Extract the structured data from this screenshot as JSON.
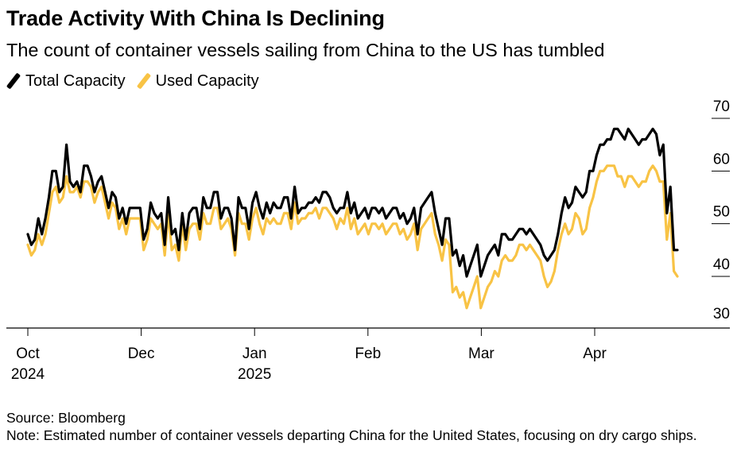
{
  "title": "Trade Activity With China Is Declining",
  "subtitle": "The count of container vessels sailing from China to the US has tumbled",
  "source": "Source: Bloomberg",
  "note": "Note: Estimated number of container vessels departing China for the United States, focusing on dry cargo ships.",
  "chart_data": {
    "type": "line",
    "x_ticks": [
      "Oct\n2024",
      "Dec",
      "Jan\n2025",
      "Feb",
      "Mar",
      "Apr"
    ],
    "y_ticks": [
      30,
      40,
      50,
      60,
      70
    ],
    "ylim": [
      27,
      72
    ],
    "legend_position": "top-left",
    "series": [
      {
        "name": "Total Capacity",
        "color": "#000000",
        "values": [
          48,
          46,
          47,
          51,
          48,
          51,
          55,
          60,
          60,
          56,
          57,
          65,
          58,
          57,
          58,
          56,
          61,
          61,
          59,
          56,
          58,
          59,
          56,
          53,
          56,
          55,
          51,
          53,
          50,
          53,
          53,
          53,
          53,
          47,
          49,
          54,
          52,
          51,
          52,
          46,
          55,
          48,
          49,
          45,
          52,
          47,
          52,
          53,
          53,
          49,
          55,
          53,
          53,
          56,
          56,
          51,
          53,
          53,
          51,
          45,
          55,
          53,
          53,
          49,
          54,
          56,
          53,
          51,
          54,
          52,
          54,
          53,
          53,
          55,
          55,
          51,
          57,
          52,
          53,
          53,
          54,
          54,
          55,
          54,
          56,
          56,
          55,
          53,
          52,
          53,
          53,
          56,
          52,
          54,
          51,
          52,
          53,
          51,
          53,
          53,
          52,
          53,
          51,
          52,
          53,
          53,
          51,
          52,
          50,
          51,
          53,
          48,
          53,
          54,
          55,
          56,
          52,
          49,
          46,
          51,
          51,
          44,
          45,
          42,
          44,
          40,
          42,
          44,
          46,
          40,
          42,
          44,
          45,
          46,
          44,
          48,
          48,
          47,
          47,
          48,
          49,
          49,
          48,
          49,
          48,
          47,
          46,
          44,
          43,
          44,
          45,
          48,
          52,
          55,
          53,
          54,
          57,
          56,
          55,
          56,
          60,
          60,
          63,
          65,
          65,
          66,
          66,
          68,
          68,
          67,
          66,
          68,
          67,
          66,
          65,
          66,
          66,
          67,
          68,
          67,
          63,
          65,
          52,
          57,
          45,
          45
        ]
      },
      {
        "name": "Used Capacity",
        "color": "#F8C345",
        "values": [
          46,
          44,
          45,
          48,
          46,
          48,
          52,
          56,
          57,
          54,
          55,
          59,
          56,
          56,
          57,
          55,
          58,
          58,
          57,
          54,
          56,
          57,
          54,
          51,
          54,
          53,
          49,
          51,
          48,
          51,
          51,
          51,
          51,
          45,
          47,
          51,
          50,
          49,
          50,
          44,
          52,
          45,
          46,
          43,
          50,
          45,
          49,
          50,
          50,
          47,
          52,
          50,
          50,
          53,
          53,
          49,
          50,
          51,
          49,
          44,
          52,
          50,
          50,
          47,
          51,
          53,
          50,
          48,
          51,
          50,
          51,
          50,
          50,
          52,
          52,
          49,
          54,
          50,
          51,
          51,
          52,
          52,
          53,
          51,
          53,
          53,
          52,
          51,
          49,
          51,
          50,
          53,
          49,
          51,
          48,
          49,
          50,
          48,
          50,
          50,
          49,
          50,
          48,
          49,
          50,
          50,
          48,
          49,
          47,
          48,
          50,
          45,
          49,
          50,
          51,
          52,
          48,
          46,
          43,
          47,
          46,
          37,
          38,
          36,
          37,
          34,
          36,
          38,
          40,
          34,
          36,
          38,
          39,
          41,
          40,
          43,
          44,
          43,
          43,
          44,
          46,
          46,
          45,
          46,
          45,
          44,
          43,
          40,
          38,
          39,
          41,
          45,
          48,
          50,
          48,
          49,
          52,
          51,
          48,
          49,
          53,
          55,
          58,
          60,
          60,
          61,
          61,
          61,
          59,
          59,
          57,
          59,
          59,
          58,
          57,
          58,
          58,
          60,
          61,
          60,
          58,
          58,
          47,
          52,
          41,
          40
        ]
      }
    ]
  }
}
